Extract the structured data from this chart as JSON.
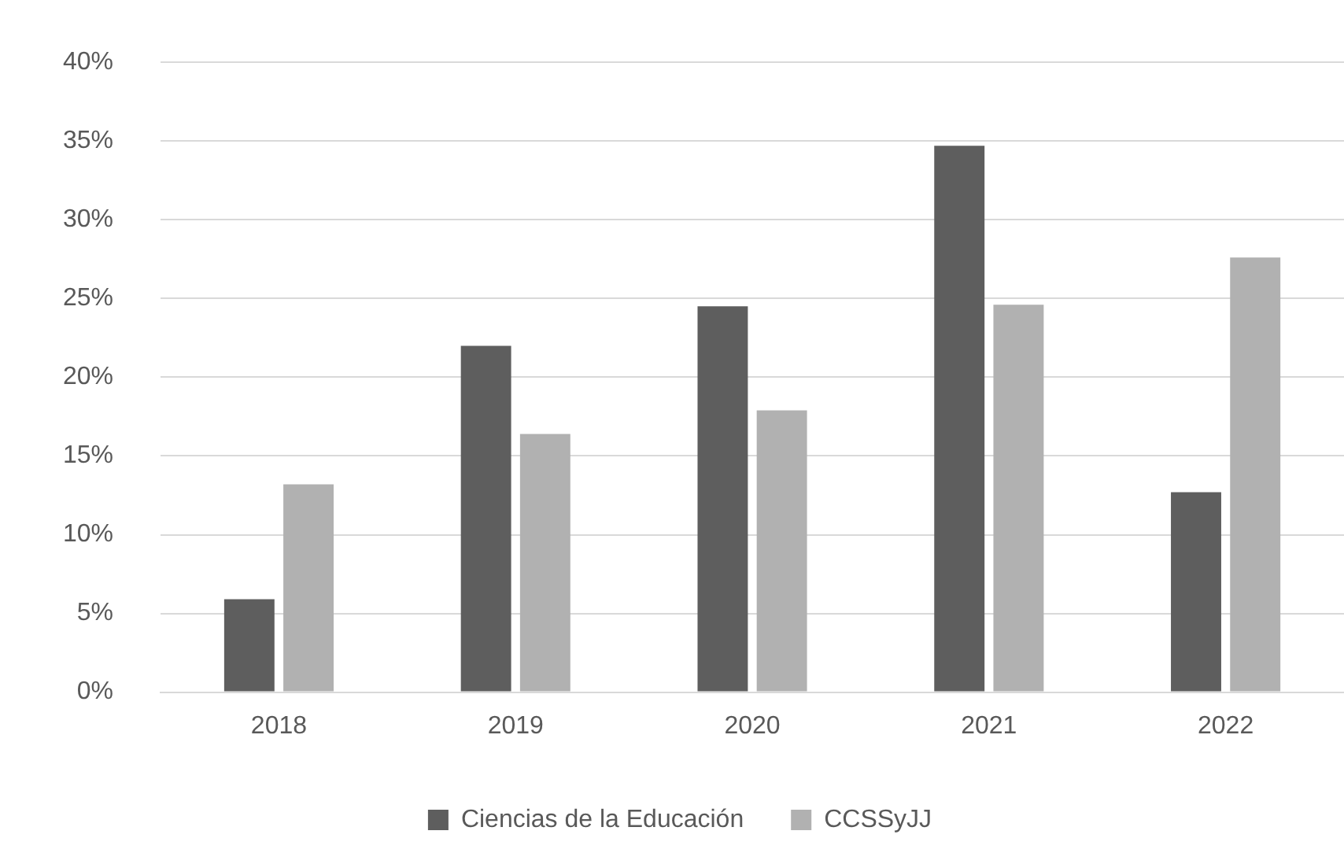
{
  "chart_data": {
    "type": "bar",
    "categories": [
      "2018",
      "2019",
      "2020",
      "2021",
      "2022"
    ],
    "series": [
      {
        "name": "Ciencias de la Educación",
        "color": "#5e5e5e",
        "values": [
          5.9,
          22.0,
          24.5,
          34.7,
          12.7
        ]
      },
      {
        "name": "CCSSyJJ",
        "color": "#b1b1b1",
        "values": [
          13.2,
          16.4,
          17.9,
          24.6,
          27.6
        ]
      }
    ],
    "ylim": [
      0,
      40
    ],
    "yticks": [
      {
        "value": 0,
        "label": "0%"
      },
      {
        "value": 5,
        "label": "5%"
      },
      {
        "value": 10,
        "label": "10%"
      },
      {
        "value": 15,
        "label": "15%"
      },
      {
        "value": 20,
        "label": "20%"
      },
      {
        "value": 25,
        "label": "25%"
      },
      {
        "value": 30,
        "label": "30%"
      },
      {
        "value": 35,
        "label": "35%"
      },
      {
        "value": 40,
        "label": "40%"
      }
    ],
    "grid": "y",
    "legend": "bottom"
  }
}
